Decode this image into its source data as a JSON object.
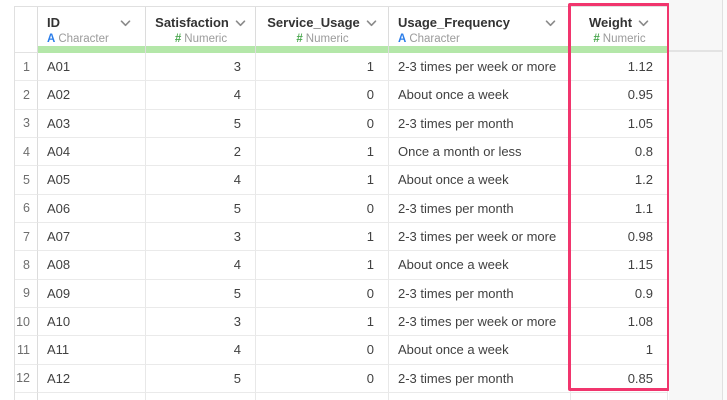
{
  "table": {
    "columns": [
      {
        "name": "ID",
        "type_icon": "A",
        "type_label": "Character",
        "kind": "character",
        "highlighted": false
      },
      {
        "name": "Satisfaction",
        "type_icon": "#",
        "type_label": "Numeric",
        "kind": "numeric",
        "highlighted": false
      },
      {
        "name": "Service_Usage",
        "type_icon": "#",
        "type_label": "Numeric",
        "kind": "numeric",
        "highlighted": false
      },
      {
        "name": "Usage_Frequency",
        "type_icon": "A",
        "type_label": "Character",
        "kind": "character",
        "highlighted": false
      },
      {
        "name": "Weight",
        "type_icon": "#",
        "type_label": "Numeric",
        "kind": "numeric",
        "highlighted": true
      }
    ],
    "rows": [
      {
        "num": "1",
        "cells": [
          "A01",
          "3",
          "1",
          "2-3 times per week or more",
          "1.12"
        ]
      },
      {
        "num": "2",
        "cells": [
          "A02",
          "4",
          "0",
          "About once a week",
          "0.95"
        ]
      },
      {
        "num": "3",
        "cells": [
          "A03",
          "5",
          "0",
          "2-3 times per month",
          "1.05"
        ]
      },
      {
        "num": "4",
        "cells": [
          "A04",
          "2",
          "1",
          "Once a month or less",
          "0.8"
        ]
      },
      {
        "num": "5",
        "cells": [
          "A05",
          "4",
          "1",
          "About once a week",
          "1.2"
        ]
      },
      {
        "num": "6",
        "cells": [
          "A06",
          "5",
          "0",
          "2-3 times per month",
          "1.1"
        ]
      },
      {
        "num": "7",
        "cells": [
          "A07",
          "3",
          "1",
          "2-3 times per week or more",
          "0.98"
        ]
      },
      {
        "num": "8",
        "cells": [
          "A08",
          "4",
          "1",
          "About once a week",
          "1.15"
        ]
      },
      {
        "num": "9",
        "cells": [
          "A09",
          "5",
          "0",
          "2-3 times per month",
          "0.9"
        ]
      },
      {
        "num": "10",
        "cells": [
          "A10",
          "3",
          "1",
          "2-3 times per week or more",
          "1.08"
        ]
      },
      {
        "num": "11",
        "cells": [
          "A11",
          "4",
          "0",
          "About once a week",
          "1"
        ]
      },
      {
        "num": "12",
        "cells": [
          "A12",
          "5",
          "0",
          "2-3 times per month",
          "0.85"
        ]
      }
    ]
  },
  "colors": {
    "column_highlight_border": "#F1356D",
    "header_underline": "#B4E7A9",
    "character_icon": "#2B7DE9",
    "numeric_icon": "#4BA74F"
  }
}
